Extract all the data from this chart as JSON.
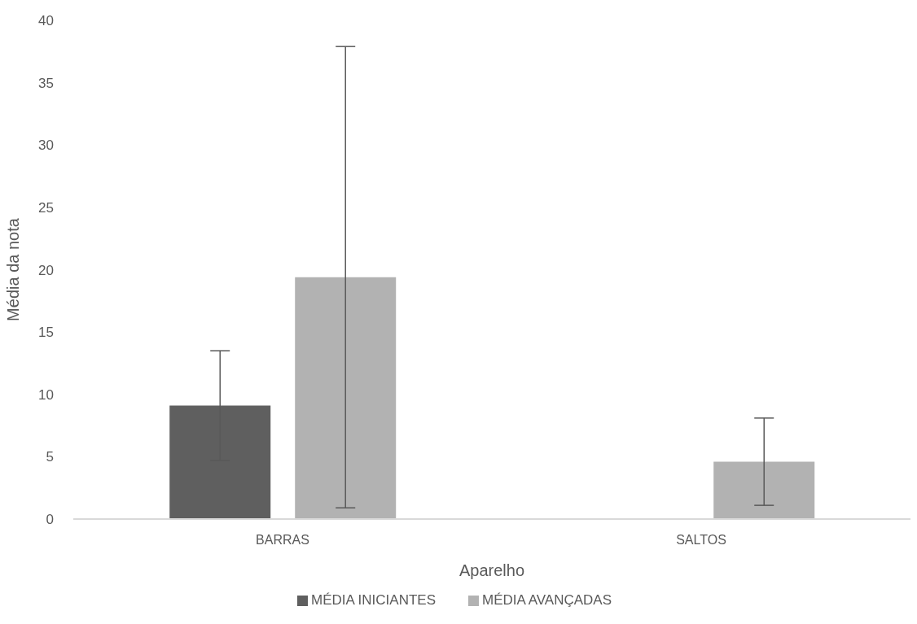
{
  "chart_data": {
    "type": "bar",
    "xlabel": "Aparelho",
    "ylabel": "Média da nota",
    "categories": [
      "BARRAS",
      "SALTOS"
    ],
    "series": [
      {
        "name": "MÉDIA INICIANTES",
        "color": "#5f5f5f",
        "values": [
          9.1,
          0
        ],
        "errors": [
          4.4,
          null
        ]
      },
      {
        "name": "MÉDIA AVANÇADAS",
        "color": "#b2b2b2",
        "values": [
          19.4,
          4.6
        ],
        "errors": [
          18.5,
          3.5
        ]
      }
    ],
    "ylim": [
      0,
      40
    ],
    "yticks": [
      0,
      5,
      10,
      15,
      20,
      25,
      30,
      35,
      40
    ],
    "grid": false,
    "legend": "bottom"
  }
}
